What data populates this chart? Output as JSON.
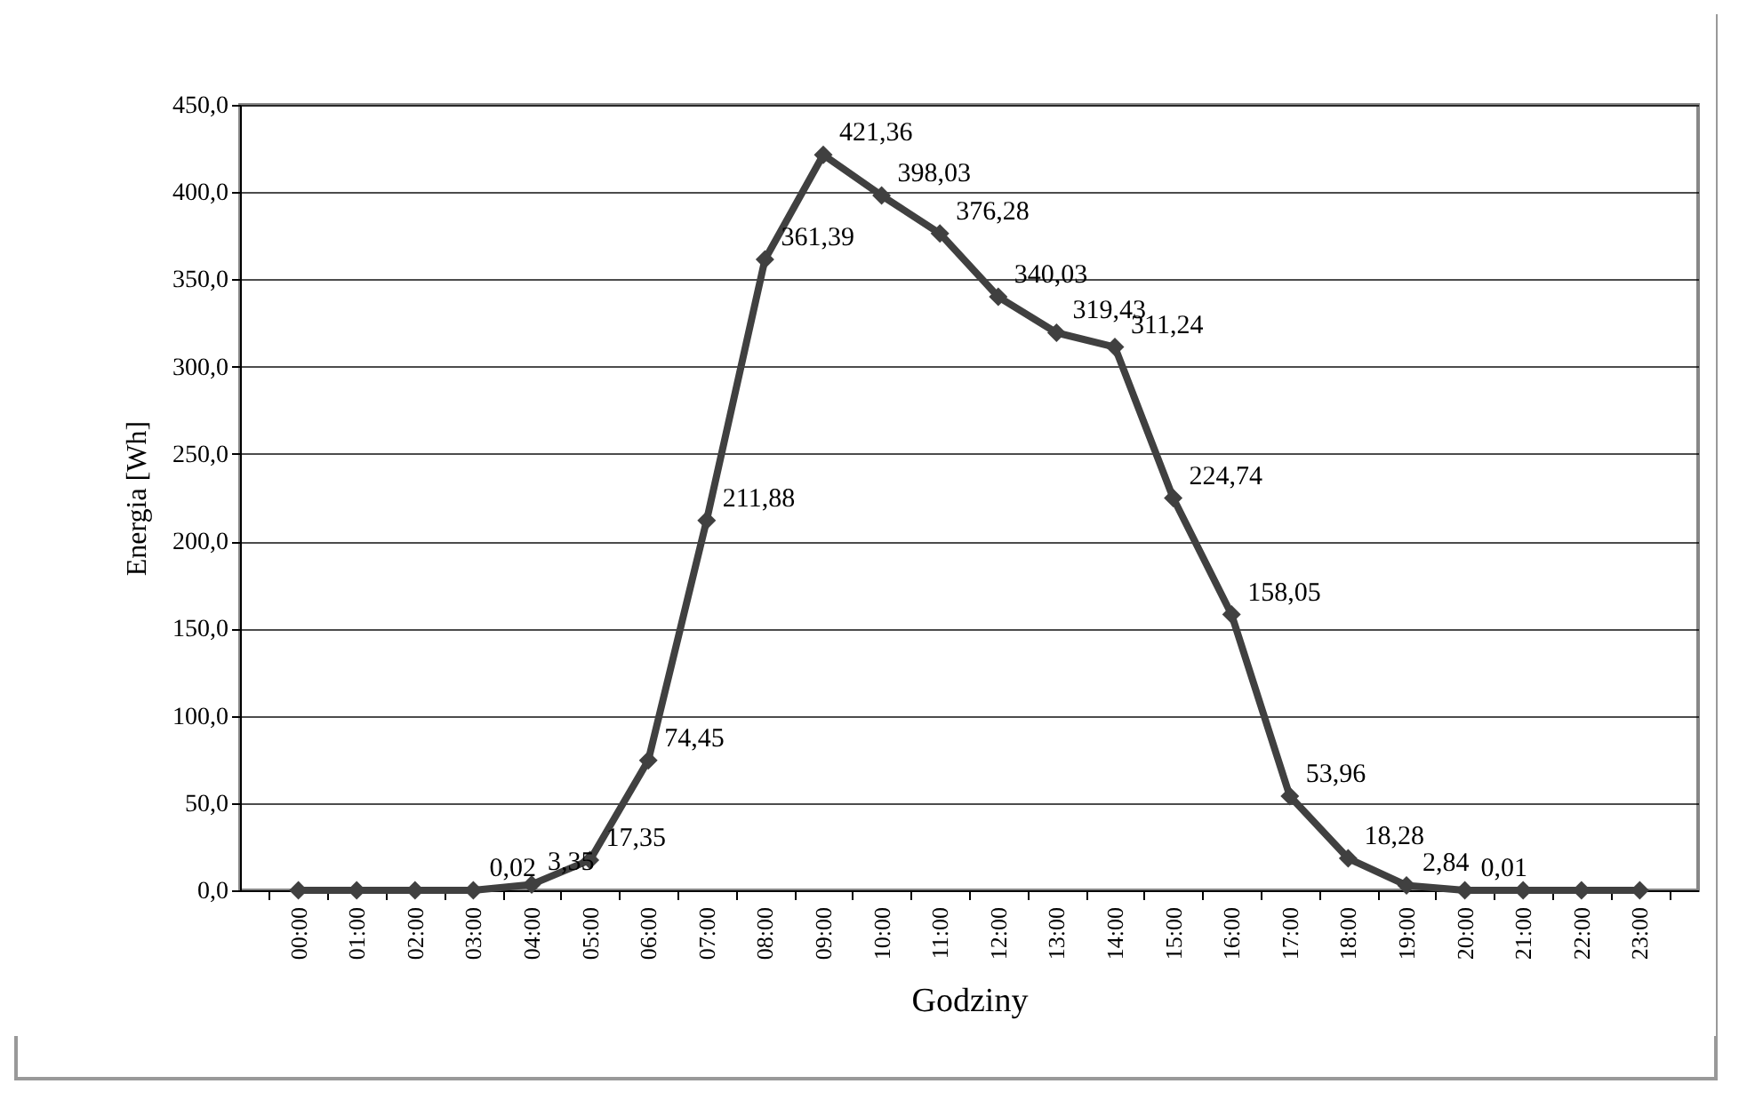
{
  "chart_data": {
    "type": "line",
    "xlabel": "Godziny",
    "ylabel": "Energia [Wh]",
    "categories": [
      "00:00",
      "01:00",
      "02:00",
      "03:00",
      "04:00",
      "05:00",
      "06:00",
      "07:00",
      "08:00",
      "09:00",
      "10:00",
      "11:00",
      "12:00",
      "13:00",
      "14:00",
      "15:00",
      "16:00",
      "17:00",
      "18:00",
      "19:00",
      "20:00",
      "21:00",
      "22:00",
      "23:00"
    ],
    "series": [
      {
        "color": "#404040",
        "values": [
          0,
          0,
          0,
          0.02,
          3.35,
          17.35,
          74.45,
          211.88,
          361.39,
          421.36,
          398.03,
          376.28,
          340.03,
          319.43,
          311.24,
          224.74,
          158.05,
          53.96,
          18.28,
          2.84,
          0.01,
          0,
          0,
          0
        ],
        "value_labels": [
          null,
          null,
          null,
          "0,02",
          "3,35",
          "17,35",
          "74,45",
          "211,88",
          "361,39",
          "421,36",
          "398,03",
          "376,28",
          "340,03",
          "319,43",
          "311,24",
          "224,74",
          "158,05",
          "53,96",
          "18,28",
          "2,84",
          "0,01",
          null,
          null,
          null
        ]
      }
    ],
    "ylim": [
      0,
      450
    ],
    "yticks": [
      {
        "value": 0,
        "label": "0,0"
      },
      {
        "value": 50,
        "label": "50,0"
      },
      {
        "value": 100,
        "label": "100,0"
      },
      {
        "value": 150,
        "label": "150,0"
      },
      {
        "value": 200,
        "label": "200,0"
      },
      {
        "value": 250,
        "label": "250,0"
      },
      {
        "value": 300,
        "label": "300,0"
      },
      {
        "value": 350,
        "label": "350,0"
      },
      {
        "value": 400,
        "label": "400,0"
      },
      {
        "value": 450,
        "label": "450,0"
      }
    ],
    "grid": "y",
    "marker": "diamond",
    "line_style": "solid"
  }
}
